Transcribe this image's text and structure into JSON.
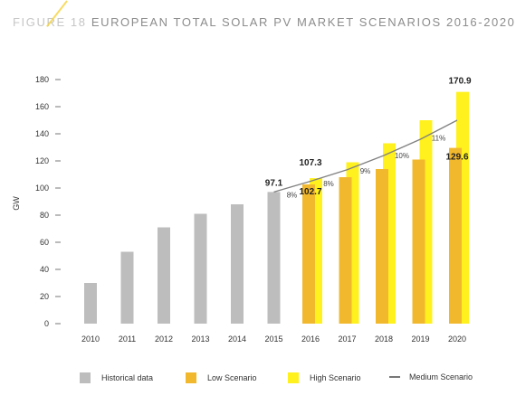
{
  "title_prefix": "FIGURE 18",
  "title_main": "EUROPEAN TOTAL SOLAR PV MARKET SCENARIOS 2016-2020",
  "chart_data": {
    "type": "bar",
    "ylabel": "GW",
    "ylim": [
      0,
      180
    ],
    "yticks": [
      0,
      20,
      40,
      60,
      80,
      100,
      120,
      140,
      160,
      180
    ],
    "categories": [
      "2010",
      "2011",
      "2012",
      "2013",
      "2014",
      "2015",
      "2016",
      "2017",
      "2018",
      "2019",
      "2020"
    ],
    "series": [
      {
        "name": "Historical data",
        "color": "#bdbdbd",
        "values": [
          30,
          53,
          71,
          81,
          88,
          97.1,
          null,
          null,
          null,
          null,
          null
        ]
      },
      {
        "name": "Low Scenario",
        "color": "#f2b82d",
        "values": [
          null,
          null,
          null,
          null,
          null,
          null,
          102.7,
          108,
          114,
          121,
          129.6
        ]
      },
      {
        "name": "High Scenario",
        "color": "#fff11e",
        "values": [
          null,
          null,
          null,
          null,
          null,
          null,
          107.3,
          119,
          133,
          150,
          170.9
        ]
      },
      {
        "name": "Medium Scenario",
        "color": "#808080",
        "type": "line",
        "values": [
          null,
          null,
          null,
          null,
          null,
          97.1,
          105,
          113.5,
          124,
          136,
          150
        ]
      }
    ],
    "data_labels": [
      {
        "category": "2015",
        "value": "97.1"
      },
      {
        "category": "2016",
        "value": "107.3"
      },
      {
        "category": "2016",
        "value": "102.7"
      },
      {
        "category": "2020",
        "value": "170.9"
      },
      {
        "category": "2020",
        "value": "129.6"
      }
    ],
    "growth_labels": [
      {
        "category": "2015",
        "value": "8%"
      },
      {
        "category": "2016",
        "value": "8%"
      },
      {
        "category": "2017",
        "value": "9%"
      },
      {
        "category": "2018",
        "value": "10%"
      },
      {
        "category": "2019",
        "value": "11%"
      }
    ],
    "legend": [
      "Historical data",
      "Low Scenario",
      "High Scenario",
      "Medium Scenario"
    ],
    "legend_position": "bottom",
    "grid": false
  }
}
